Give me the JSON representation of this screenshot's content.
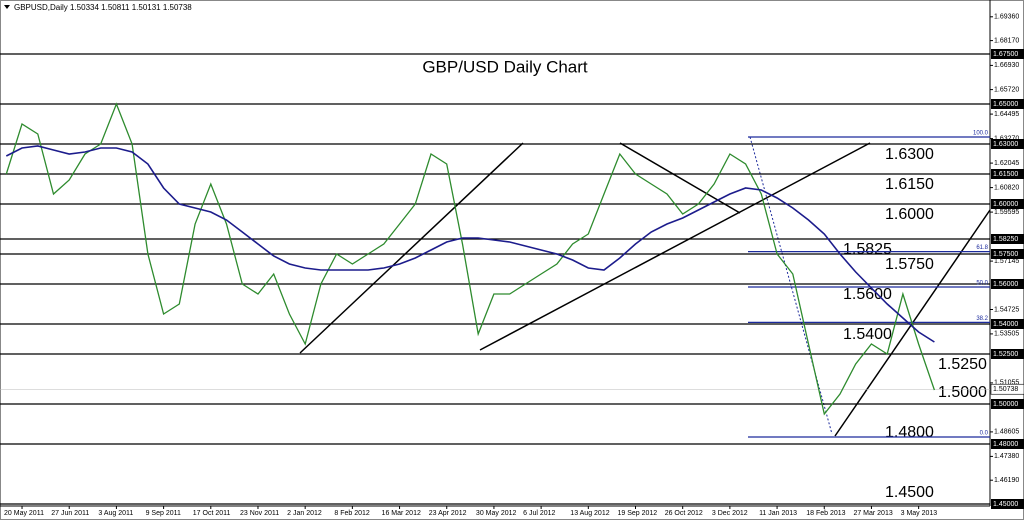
{
  "chart_data": {
    "type": "line",
    "header": "GBPUSD,Daily  1.50334 1.50811 1.50131 1.50738",
    "title": "GBP/USD Daily Chart",
    "categories": [
      null,
      "20 May 2011",
      null,
      null,
      "27 Jun 2011",
      null,
      null,
      "3 Aug 2011",
      null,
      null,
      "9 Sep 2011",
      null,
      null,
      "17 Oct 2011",
      null,
      null,
      "23 Nov 2011",
      null,
      null,
      "2 Jan 2012",
      null,
      null,
      "8 Feb 2012",
      null,
      null,
      "16 Mar 2012",
      null,
      null,
      "23 Apr 2012",
      null,
      null,
      "30 May 2012",
      null,
      null,
      "6 Jul 2012",
      null,
      null,
      "13 Aug 2012",
      null,
      null,
      "19 Sep 2012",
      null,
      null,
      "26 Oct 2012",
      null,
      null,
      "3 Dec 2012",
      null,
      null,
      "11 Jan 2013",
      null,
      null,
      "18 Feb 2013",
      null,
      null,
      "27 Mar 2013",
      null,
      null,
      "3 May 2013",
      null
    ],
    "series": [
      {
        "name": "GBPUSD",
        "color": "#2e8b2e",
        "values": [
          1.615,
          1.64,
          1.635,
          1.605,
          1.612,
          1.625,
          1.63,
          1.65,
          1.63,
          1.575,
          1.545,
          1.55,
          1.59,
          1.61,
          1.59,
          1.56,
          1.555,
          1.565,
          1.545,
          1.53,
          1.56,
          1.575,
          1.57,
          1.575,
          1.58,
          1.59,
          1.6,
          1.625,
          1.62,
          1.58,
          1.535,
          1.555,
          1.555,
          1.56,
          1.565,
          1.57,
          1.58,
          1.585,
          1.605,
          1.625,
          1.615,
          1.61,
          1.605,
          1.595,
          1.6,
          1.61,
          1.625,
          1.62,
          1.605,
          1.575,
          1.565,
          1.53,
          1.495,
          1.505,
          1.52,
          1.53,
          1.525,
          1.555,
          1.53,
          1.507
        ]
      },
      {
        "name": "MA",
        "color": "#1c1c8c",
        "values": [
          1.624,
          1.628,
          1.629,
          1.627,
          1.625,
          1.626,
          1.628,
          1.628,
          1.626,
          1.62,
          1.608,
          1.6,
          1.598,
          1.596,
          1.592,
          1.586,
          1.58,
          1.574,
          1.57,
          1.568,
          1.567,
          1.567,
          1.567,
          1.567,
          1.568,
          1.57,
          1.573,
          1.577,
          1.581,
          1.583,
          1.583,
          1.582,
          1.581,
          1.579,
          1.577,
          1.575,
          1.572,
          1.568,
          1.567,
          1.573,
          1.58,
          1.586,
          1.59,
          1.593,
          1.597,
          1.601,
          1.605,
          1.608,
          1.607,
          1.603,
          1.598,
          1.592,
          1.585,
          1.575,
          1.566,
          1.558,
          1.55,
          1.543,
          1.536,
          1.531
        ]
      }
    ],
    "ylim": [
      1.449,
      1.702
    ],
    "yticks": [
      {
        "value": 1.6936,
        "label": "1.69360"
      },
      {
        "value": 1.6817,
        "label": "1.68170"
      },
      {
        "value": 1.6693,
        "label": "1.66930"
      },
      {
        "value": 1.6572,
        "label": "1.65720"
      },
      {
        "value": 1.64495,
        "label": "1.64495"
      },
      {
        "value": 1.6327,
        "label": "1.63270"
      },
      {
        "value": 1.62045,
        "label": "1.62045"
      },
      {
        "value": 1.6082,
        "label": "1.60820"
      },
      {
        "value": 1.59595,
        "label": "1.59595"
      },
      {
        "value": 1.57145,
        "label": "1.57145"
      },
      {
        "value": 1.54725,
        "label": "1.54725"
      },
      {
        "value": 1.53505,
        "label": "1.53505"
      },
      {
        "value": 1.51055,
        "label": "1.51055"
      },
      {
        "value": 1.48605,
        "label": "1.48605"
      },
      {
        "value": 1.4738,
        "label": "1.47380"
      },
      {
        "value": 1.4619,
        "label": "1.46190"
      }
    ],
    "levels": [
      {
        "value": 1.675,
        "axis_label": "1.67500"
      },
      {
        "value": 1.65,
        "axis_label": "1.65000"
      },
      {
        "value": 1.63,
        "label": "1.6300",
        "axis_label": "1.63000"
      },
      {
        "value": 1.615,
        "label": "1.6150",
        "axis_label": "1.61500"
      },
      {
        "value": 1.6,
        "label": "1.6000",
        "axis_label": "1.60000"
      },
      {
        "value": 1.5825,
        "label": "1.5825",
        "axis_label": "1.58250"
      },
      {
        "value": 1.575,
        "label": "1.5750",
        "axis_label": "1.57500"
      },
      {
        "value": 1.56,
        "label": "1.5600",
        "axis_label": "1.56000"
      },
      {
        "value": 1.54,
        "label": "1.5400",
        "axis_label": "1.54000"
      },
      {
        "value": 1.525,
        "label": "1.5250",
        "axis_label": "1.52500"
      },
      {
        "value": 1.5,
        "label": "1.5000",
        "axis_label": "1.50000"
      },
      {
        "value": 1.48,
        "label": "1.4800",
        "axis_label": "1.48000"
      },
      {
        "value": 1.45,
        "label": "1.4500",
        "axis_label": "1.45000"
      }
    ],
    "fibo": [
      {
        "value": 1.6335,
        "label": "100.0"
      },
      {
        "value": 1.5762,
        "label": "61.8"
      },
      {
        "value": 1.5585,
        "label": "50.0"
      },
      {
        "value": 1.5408,
        "label": "38.2"
      },
      {
        "value": 1.4835,
        "label": "0.0"
      }
    ],
    "fibo_color": "#1c2a9c",
    "last_price": {
      "value": 1.50738,
      "label": "1.50738"
    }
  }
}
